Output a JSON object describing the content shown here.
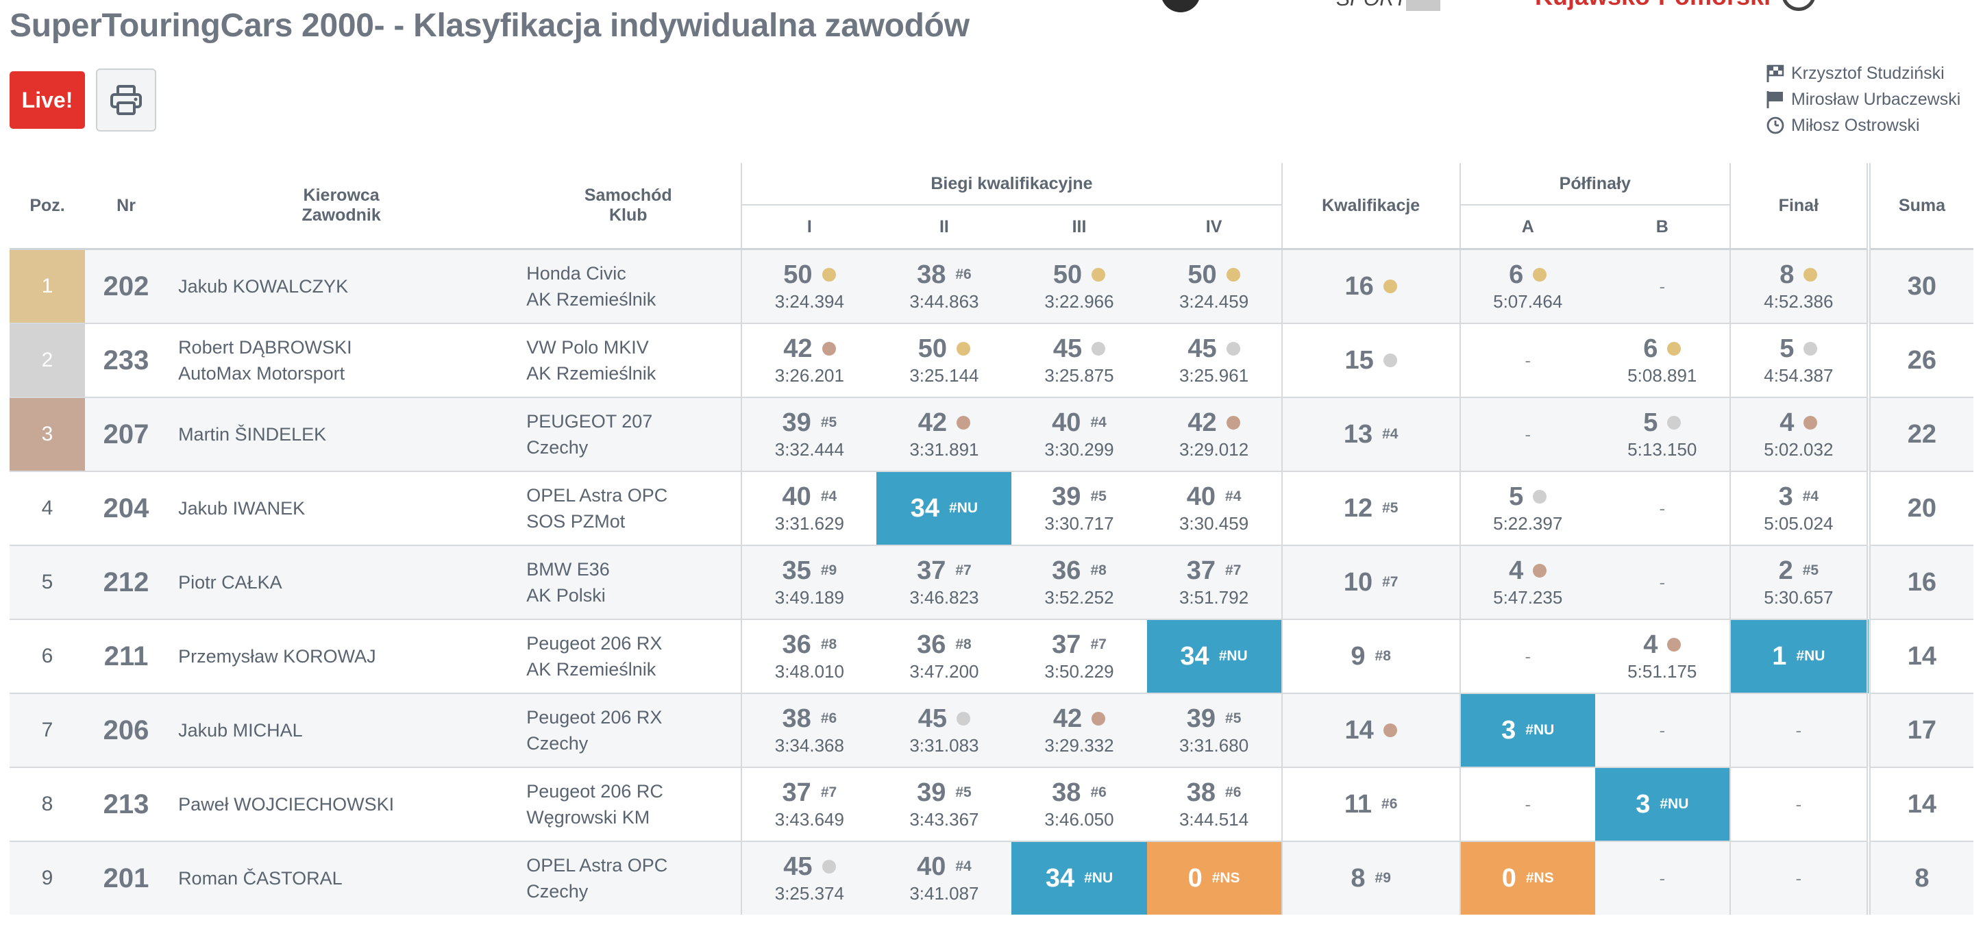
{
  "title": "SuperTouringCars 2000- - Klasyfikacja indywidualna zawodów",
  "logos": {
    "sport_text": "SPORT",
    "region_text": "Kujawsko-Pomorski"
  },
  "buttons": {
    "live_label": "Live!",
    "print_icon": "printer-icon"
  },
  "officials": [
    {
      "icon": "checkered-flag-icon",
      "name": "Krzysztof Studziński"
    },
    {
      "icon": "flag-icon",
      "name": "Mirosław Urbaczewski"
    },
    {
      "icon": "clock-icon",
      "name": "Miłosz Ostrowski"
    }
  ],
  "headers": {
    "pos": "Poz.",
    "nr": "Nr",
    "driver_1": "Kierowca",
    "driver_2": "Zawodnik",
    "car_1": "Samochód",
    "car_2": "Klub",
    "heats": "Biegi kwalifikacyjne",
    "heat_cols": [
      "I",
      "II",
      "III",
      "IV"
    ],
    "qual": "Kwalifikacje",
    "semis": "Półfinały",
    "semi_cols": [
      "A",
      "B"
    ],
    "final": "Finał",
    "sum": "Suma"
  },
  "colors": {
    "nu": "#3ca1c6",
    "ns": "#f0a35a",
    "live": "#e2322b",
    "gold": "#e0c27d",
    "silver": "#cfcfcf",
    "bronze": "#c6a08c"
  },
  "rows": [
    {
      "pos": "1",
      "nr": "202",
      "driver": "Jakub KOWALCZYK",
      "club": "",
      "car": "Honda Civic",
      "team": "AK Rzemieślnik",
      "heats": [
        {
          "pts": "50",
          "mark": "gold",
          "time": "3:24.394"
        },
        {
          "pts": "38",
          "mark": "#6",
          "time": "3:44.863"
        },
        {
          "pts": "50",
          "mark": "gold",
          "time": "3:22.966"
        },
        {
          "pts": "50",
          "mark": "gold",
          "time": "3:24.459"
        }
      ],
      "qual": {
        "pts": "16",
        "mark": "gold"
      },
      "semis": [
        {
          "pts": "6",
          "mark": "gold",
          "time": "5:07.464"
        },
        {
          "dash": "-"
        }
      ],
      "final": {
        "pts": "8",
        "mark": "gold",
        "time": "4:52.386"
      },
      "sum": "30"
    },
    {
      "pos": "2",
      "nr": "233",
      "driver": "Robert DĄBROWSKI",
      "club": "AutoMax Motorsport",
      "car": "VW Polo MKIV",
      "team": "AK Rzemieślnik",
      "heats": [
        {
          "pts": "42",
          "mark": "bronze",
          "time": "3:26.201"
        },
        {
          "pts": "50",
          "mark": "gold",
          "time": "3:25.144"
        },
        {
          "pts": "45",
          "mark": "silver",
          "time": "3:25.875"
        },
        {
          "pts": "45",
          "mark": "silver",
          "time": "3:25.961"
        }
      ],
      "qual": {
        "pts": "15",
        "mark": "silver"
      },
      "semis": [
        {
          "dash": "-"
        },
        {
          "pts": "6",
          "mark": "gold",
          "time": "5:08.891"
        }
      ],
      "final": {
        "pts": "5",
        "mark": "silver",
        "time": "4:54.387"
      },
      "sum": "26"
    },
    {
      "pos": "3",
      "nr": "207",
      "driver": "Martin ŠINDELEK",
      "club": "",
      "car": "PEUGEOT 207",
      "team": "Czechy",
      "heats": [
        {
          "pts": "39",
          "mark": "#5",
          "time": "3:32.444"
        },
        {
          "pts": "42",
          "mark": "bronze",
          "time": "3:31.891"
        },
        {
          "pts": "40",
          "mark": "#4",
          "time": "3:30.299"
        },
        {
          "pts": "42",
          "mark": "bronze",
          "time": "3:29.012"
        }
      ],
      "qual": {
        "pts": "13",
        "mark": "#4"
      },
      "semis": [
        {
          "dash": "-"
        },
        {
          "pts": "5",
          "mark": "silver",
          "time": "5:13.150"
        }
      ],
      "final": {
        "pts": "4",
        "mark": "bronze",
        "time": "5:02.032"
      },
      "sum": "22"
    },
    {
      "pos": "4",
      "nr": "204",
      "driver": "Jakub IWANEK",
      "club": "",
      "car": "OPEL Astra OPC",
      "team": "SOS PZMot",
      "heats": [
        {
          "pts": "40",
          "mark": "#4",
          "time": "3:31.629"
        },
        {
          "pts": "34",
          "mark": "#NU",
          "status": "nu"
        },
        {
          "pts": "39",
          "mark": "#5",
          "time": "3:30.717"
        },
        {
          "pts": "40",
          "mark": "#4",
          "time": "3:30.459"
        }
      ],
      "qual": {
        "pts": "12",
        "mark": "#5"
      },
      "semis": [
        {
          "pts": "5",
          "mark": "silver",
          "time": "5:22.397"
        },
        {
          "dash": "-"
        }
      ],
      "final": {
        "pts": "3",
        "mark": "#4",
        "time": "5:05.024"
      },
      "sum": "20"
    },
    {
      "pos": "5",
      "nr": "212",
      "driver": "Piotr CAŁKA",
      "club": "",
      "car": "BMW E36",
      "team": "AK Polski",
      "heats": [
        {
          "pts": "35",
          "mark": "#9",
          "time": "3:49.189"
        },
        {
          "pts": "37",
          "mark": "#7",
          "time": "3:46.823"
        },
        {
          "pts": "36",
          "mark": "#8",
          "time": "3:52.252"
        },
        {
          "pts": "37",
          "mark": "#7",
          "time": "3:51.792"
        }
      ],
      "qual": {
        "pts": "10",
        "mark": "#7"
      },
      "semis": [
        {
          "pts": "4",
          "mark": "bronze",
          "time": "5:47.235"
        },
        {
          "dash": "-"
        }
      ],
      "final": {
        "pts": "2",
        "mark": "#5",
        "time": "5:30.657"
      },
      "sum": "16"
    },
    {
      "pos": "6",
      "nr": "211",
      "driver": "Przemysław KOROWAJ",
      "club": "",
      "car": "Peugeot 206 RX",
      "team": "AK Rzemieślnik",
      "heats": [
        {
          "pts": "36",
          "mark": "#8",
          "time": "3:48.010"
        },
        {
          "pts": "36",
          "mark": "#8",
          "time": "3:47.200"
        },
        {
          "pts": "37",
          "mark": "#7",
          "time": "3:50.229"
        },
        {
          "pts": "34",
          "mark": "#NU",
          "status": "nu"
        }
      ],
      "qual": {
        "pts": "9",
        "mark": "#8"
      },
      "semis": [
        {
          "dash": "-"
        },
        {
          "pts": "4",
          "mark": "bronze",
          "time": "5:51.175"
        }
      ],
      "final": {
        "pts": "1",
        "mark": "#NU",
        "status": "nu"
      },
      "sum": "14"
    },
    {
      "pos": "7",
      "nr": "206",
      "driver": "Jakub MICHAL",
      "club": "",
      "car": "Peugeot 206 RX",
      "team": "Czechy",
      "heats": [
        {
          "pts": "38",
          "mark": "#6",
          "time": "3:34.368"
        },
        {
          "pts": "45",
          "mark": "silver",
          "time": "3:31.083"
        },
        {
          "pts": "42",
          "mark": "bronze",
          "time": "3:29.332"
        },
        {
          "pts": "39",
          "mark": "#5",
          "time": "3:31.680"
        }
      ],
      "qual": {
        "pts": "14",
        "mark": "bronze"
      },
      "semis": [
        {
          "pts": "3",
          "mark": "#NU",
          "status": "nu"
        },
        {
          "dash": "-"
        }
      ],
      "final": {
        "dash": "-"
      },
      "sum": "17"
    },
    {
      "pos": "8",
      "nr": "213",
      "driver": "Paweł WOJCIECHOWSKI",
      "club": "",
      "car": "Peugeot 206 RC",
      "team": "Węgrowski KM",
      "heats": [
        {
          "pts": "37",
          "mark": "#7",
          "time": "3:43.649"
        },
        {
          "pts": "39",
          "mark": "#5",
          "time": "3:43.367"
        },
        {
          "pts": "38",
          "mark": "#6",
          "time": "3:46.050"
        },
        {
          "pts": "38",
          "mark": "#6",
          "time": "3:44.514"
        }
      ],
      "qual": {
        "pts": "11",
        "mark": "#6"
      },
      "semis": [
        {
          "dash": "-"
        },
        {
          "pts": "3",
          "mark": "#NU",
          "status": "nu"
        }
      ],
      "final": {
        "dash": "-"
      },
      "sum": "14"
    },
    {
      "pos": "9",
      "nr": "201",
      "driver": "Roman ČASTORAL",
      "club": "",
      "car": "OPEL Astra OPC",
      "team": "Czechy",
      "heats": [
        {
          "pts": "45",
          "mark": "silver",
          "time": "3:25.374"
        },
        {
          "pts": "40",
          "mark": "#4",
          "time": "3:41.087"
        },
        {
          "pts": "34",
          "mark": "#NU",
          "status": "nu"
        },
        {
          "pts": "0",
          "mark": "#NS",
          "status": "ns"
        }
      ],
      "qual": {
        "pts": "8",
        "mark": "#9"
      },
      "semis": [
        {
          "pts": "0",
          "mark": "#NS",
          "status": "ns"
        },
        {
          "dash": "-"
        }
      ],
      "final": {
        "dash": "-"
      },
      "sum": "8"
    }
  ]
}
